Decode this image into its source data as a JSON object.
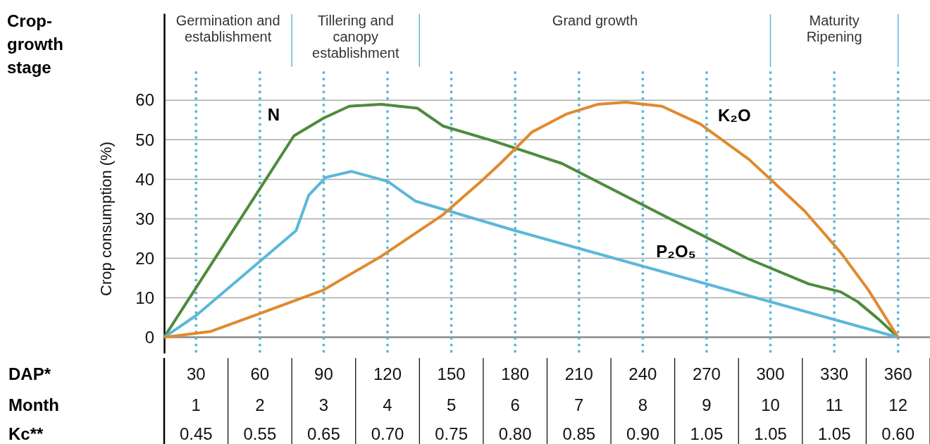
{
  "chart_data": {
    "type": "line",
    "ylabel": "Crop consumption (%)",
    "xlim": [
      15,
      375
    ],
    "xticks": [
      30,
      60,
      90,
      120,
      150,
      180,
      210,
      240,
      270,
      300,
      330,
      360
    ],
    "ylim": [
      -4,
      82
    ],
    "yticks": [
      0,
      10,
      20,
      30,
      40,
      50,
      60
    ],
    "grid": true,
    "marker": "none",
    "line_style": "solid",
    "series": [
      {
        "name": "N",
        "color": "#4e8b3d",
        "x": [
          15,
          76,
          90,
          102,
          117,
          134,
          146,
          168,
          202,
          289,
          318,
          333,
          341,
          351,
          360
        ],
        "values": [
          0,
          51,
          55.5,
          58.5,
          59,
          58,
          53.5,
          50,
          44,
          20,
          13.5,
          11.5,
          9,
          4.5,
          0
        ]
      },
      {
        "name": "P₂O₅",
        "color": "#5bb8d9",
        "x": [
          15,
          30,
          77,
          83,
          91,
          103,
          120,
          133,
          180,
          360
        ],
        "values": [
          0,
          5.5,
          27,
          36,
          40.5,
          42,
          39.5,
          34.5,
          27,
          0
        ]
      },
      {
        "name": "K₂O",
        "color": "#e08a2e",
        "x": [
          15,
          37,
          60,
          90,
          117,
          146,
          164,
          173,
          188,
          204,
          219,
          232,
          249,
          267,
          290,
          316,
          333,
          346,
          360
        ],
        "values": [
          0,
          1.5,
          6,
          12,
          20.5,
          31,
          39.5,
          44,
          52,
          56.5,
          59,
          59.5,
          58.5,
          54,
          45,
          32,
          21.5,
          12,
          0
        ]
      }
    ],
    "ref_lines": [
      {
        "axis": "x",
        "value": 75,
        "color": "#5bb8d9"
      },
      {
        "axis": "x",
        "value": 135,
        "color": "#5bb8d9"
      },
      {
        "axis": "x",
        "value": 300,
        "color": "#5bb8d9"
      },
      {
        "axis": "x",
        "value": 360,
        "color": "#5bb8d9"
      }
    ],
    "annotations": [
      "Crop-growth stage",
      "Germination and establishment",
      "Tillering and canopy establishment",
      "Grand growth",
      "Maturity Ripening",
      "DAP*",
      "Month",
      "1",
      "2",
      "3",
      "4",
      "5",
      "6",
      "7",
      "8",
      "9",
      "10",
      "11",
      "12",
      "Kc**",
      "0.45",
      "0.55",
      "0.65",
      "0.70",
      "0.75",
      "0.80",
      "0.85",
      "0.90",
      "1.05",
      "1.05",
      "1.05",
      "0.60"
    ]
  }
}
